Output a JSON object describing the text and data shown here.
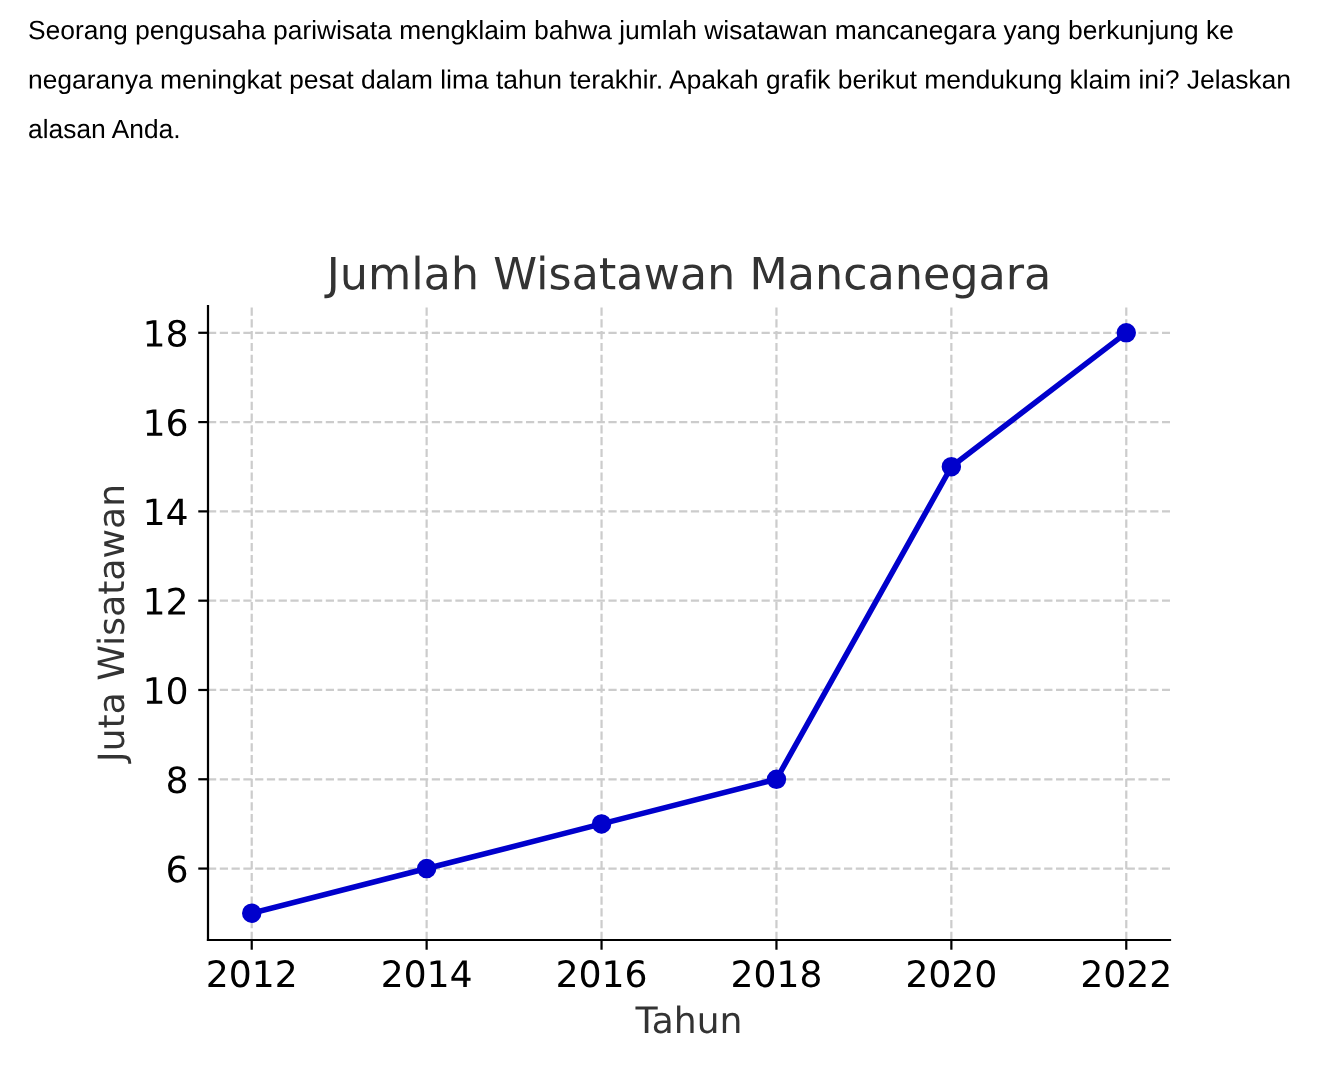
{
  "chart_data": {
    "type": "line",
    "title": "Jumlah Wisatawan Mancanegara",
    "xlabel": "Tahun",
    "ylabel": "Juta Wisatawan",
    "annotations": [
      "Seorang pengusaha pariwisata mengklaim bahwa jumlah wisatawan mancanegara yang berkunjung ke negaranya meningkat pesat dalam lima tahun terakhir. Apakah grafik berikut mendukung klaim ini? Jelaskan alasan Anda."
    ],
    "x": [
      2012,
      2014,
      2016,
      2018,
      2020,
      2022
    ],
    "series": [
      {
        "color": "#0000cc",
        "values": [
          5,
          6,
          7,
          8,
          15,
          18
        ]
      }
    ],
    "xlim": [
      2011.5,
      2022.5
    ],
    "ylim": [
      4.4,
      18.6
    ],
    "xticks": [
      2012,
      2014,
      2016,
      2018,
      2020,
      2022
    ],
    "yticks": [
      6,
      8,
      10,
      12,
      14,
      16,
      18
    ],
    "grid": true,
    "marker": "circle",
    "line_style": "solid"
  }
}
